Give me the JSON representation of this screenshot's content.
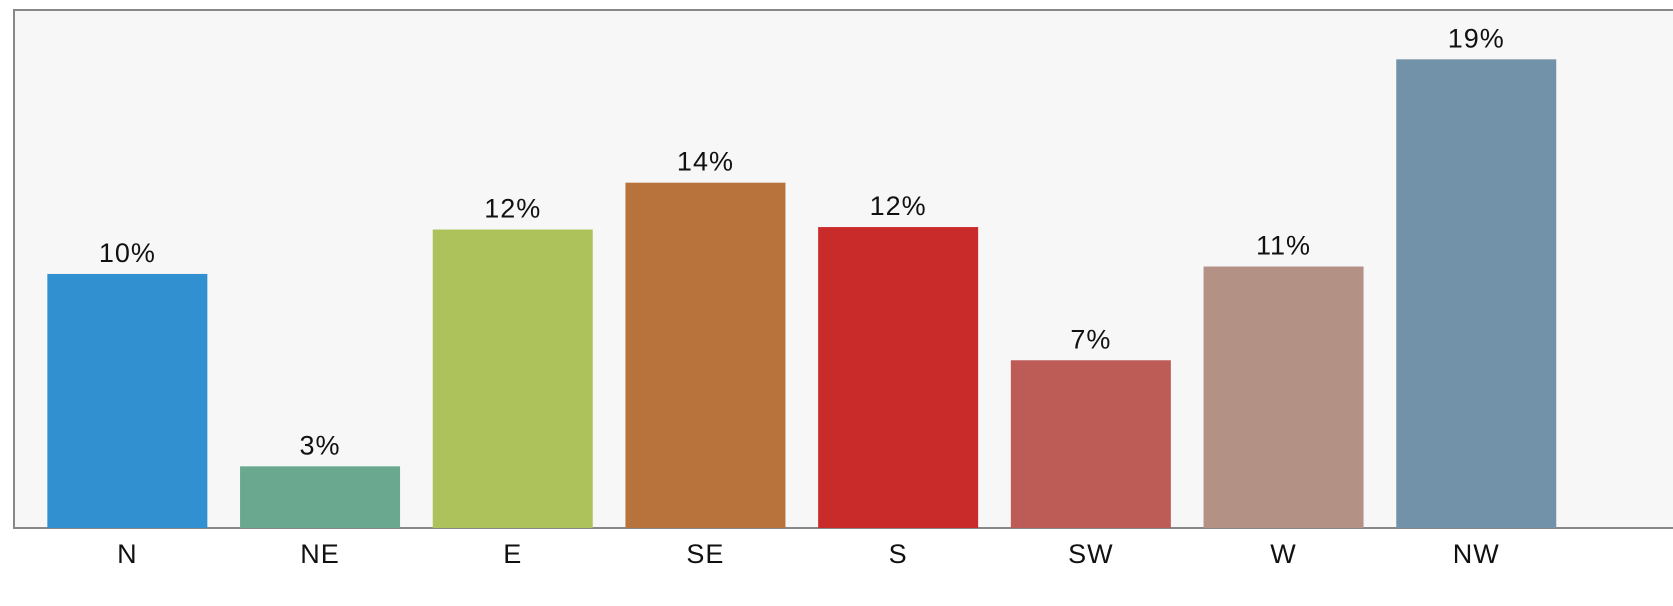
{
  "chart_data": {
    "type": "bar",
    "categories": [
      "N",
      "NE",
      "E",
      "SE",
      "S",
      "SW",
      "W",
      "NW"
    ],
    "values": [
      10.3,
      2.5,
      12.1,
      14,
      12.2,
      6.8,
      10.6,
      19
    ],
    "value_labels": [
      "10%",
      "3%",
      "12%",
      "14%",
      "12%",
      "7%",
      "11%",
      "19%"
    ],
    "colors": [
      "#3190d0",
      "#6aa890",
      "#adc25a",
      "#b8733c",
      "#c92a2a",
      "#bd5b57",
      "#b39185",
      "#7292a9"
    ],
    "ylim": [
      0,
      21
    ]
  }
}
